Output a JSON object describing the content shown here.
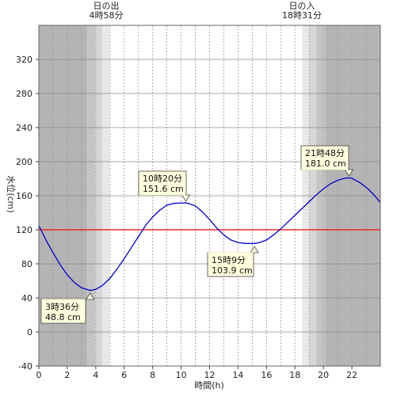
{
  "chart_data": {
    "type": "line",
    "xlabel": "時間(h)",
    "ylabel": "水位(cm)",
    "xlim": [
      0,
      24
    ],
    "ylim": [
      -40,
      360
    ],
    "x_ticks": [
      0,
      2,
      4,
      6,
      8,
      10,
      12,
      14,
      16,
      18,
      20,
      22
    ],
    "y_ticks": [
      -40,
      0,
      40,
      80,
      120,
      160,
      200,
      240,
      280,
      320
    ],
    "grid": "dotted vertical every 1h, solid horizontal every 40cm",
    "reference_level": 120,
    "reference_color": "#ff0000",
    "line_color": "#0000cc",
    "sunrise": {
      "title": "日の出",
      "time_label": "4時58分",
      "hour": 4.967
    },
    "sunset": {
      "title": "日の入",
      "time_label": "18時31分",
      "hour": 18.517
    },
    "series": [
      {
        "x": [
          0,
          0.5,
          1,
          1.5,
          2,
          2.5,
          3,
          3.6,
          4,
          4.5,
          5,
          5.5,
          6,
          6.5,
          7,
          7.5,
          8,
          8.5,
          9,
          9.5,
          10,
          10.33,
          10.5,
          11,
          11.5,
          12,
          12.5,
          13,
          13.5,
          14,
          14.5,
          15.15,
          15.5,
          16,
          16.5,
          17,
          17.5,
          18,
          18.5,
          19,
          19.5,
          20,
          20.5,
          21,
          21.5,
          21.8,
          22,
          22.5,
          23,
          23.5,
          24
        ],
        "y": [
          125,
          108,
          93,
          79,
          67,
          58,
          52,
          48.8,
          50,
          55,
          63,
          74,
          86,
          99,
          112,
          125,
          135,
          143,
          149,
          151,
          151.5,
          151.6,
          151,
          148,
          141,
          132,
          122,
          114,
          108,
          105,
          104,
          103.9,
          105,
          108,
          114,
          121,
          129,
          137,
          145,
          153,
          161,
          168,
          174,
          178,
          180.5,
          181.0,
          180.5,
          176,
          170,
          162,
          152
        ]
      }
    ],
    "annotations": [
      {
        "time": "3時36分",
        "value": "48.8 cm",
        "x": 3.6,
        "y": 48.8
      },
      {
        "time": "10時20分",
        "value": "151.6 cm",
        "x": 10.333,
        "y": 151.6
      },
      {
        "time": "15時9分",
        "value": "103.9 cm",
        "x": 15.15,
        "y": 103.9
      },
      {
        "time": "21時48分",
        "value": "181.0 cm",
        "x": 21.8,
        "y": 181.0
      }
    ]
  }
}
